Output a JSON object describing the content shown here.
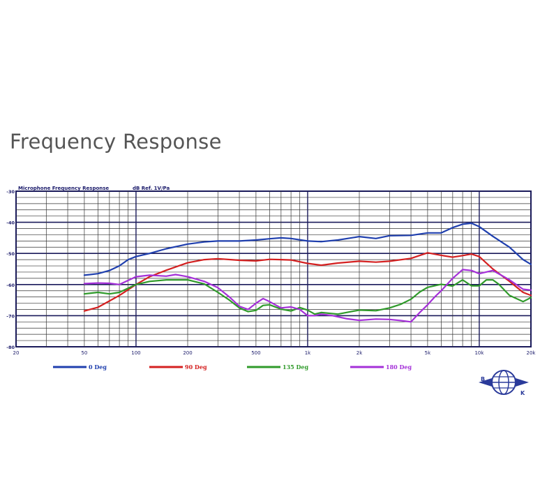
{
  "heading": "Frequency Response",
  "chart_data": {
    "type": "line",
    "title": "Microphone Frequency Response",
    "ylabel": "dB Ref. 1V/Pa",
    "x_scale": "log",
    "xlim": [
      20,
      20000
    ],
    "ylim": [
      -80,
      -30
    ],
    "y_ticks": [
      -30,
      -40,
      -50,
      -60,
      -70,
      -80
    ],
    "y_tick_labels": [
      "-30",
      "-40",
      "-50",
      "-60",
      "-70",
      "-80"
    ],
    "x_ticks": [
      20,
      50,
      100,
      200,
      500,
      1000,
      2000,
      5000,
      10000,
      20000
    ],
    "x_tick_labels": [
      "20",
      "50",
      "100",
      "200",
      "500",
      "1k",
      "2k",
      "5k",
      "10k",
      "20k"
    ],
    "grid": true,
    "legend_position": "bottom",
    "series": [
      {
        "name": "0 Deg",
        "color": "#1f3fae",
        "x": [
          50,
          60,
          70,
          80,
          90,
          100,
          120,
          150,
          200,
          250,
          300,
          400,
          500,
          600,
          700,
          800,
          1000,
          1200,
          1500,
          2000,
          2500,
          3000,
          4000,
          5000,
          6000,
          7000,
          8000,
          9000,
          10000,
          12000,
          15000,
          18000,
          20000
        ],
        "y": [
          -57,
          -56.5,
          -55.5,
          -54,
          -52,
          -51,
          -50,
          -48.5,
          -47,
          -46.3,
          -46,
          -46,
          -45.7,
          -45.3,
          -45,
          -45.2,
          -46,
          -46.2,
          -45.7,
          -44.6,
          -45.2,
          -44.3,
          -44.2,
          -43.4,
          -43.4,
          -41.7,
          -40.6,
          -40.3,
          -41.4,
          -44.5,
          -48,
          -52,
          -53.5
        ]
      },
      {
        "name": "90 Deg",
        "color": "#d42020",
        "x": [
          50,
          60,
          70,
          80,
          100,
          120,
          150,
          200,
          250,
          300,
          400,
          500,
          600,
          700,
          800,
          1000,
          1200,
          1500,
          2000,
          2500,
          3000,
          4000,
          5000,
          6000,
          7000,
          8000,
          9000,
          10000,
          12000,
          15000,
          18000,
          20000
        ],
        "y": [
          -68.5,
          -67.3,
          -65.3,
          -63.5,
          -60,
          -57.5,
          -55.4,
          -53,
          -52,
          -51.7,
          -52.2,
          -52.4,
          -51.9,
          -52,
          -52.1,
          -53.2,
          -53.8,
          -53.1,
          -52.5,
          -52.8,
          -52.5,
          -51.6,
          -49.8,
          -50.6,
          -51.2,
          -50.7,
          -50.2,
          -51,
          -55,
          -59,
          -62.5,
          -63.5
        ]
      },
      {
        "name": "135 Deg",
        "color": "#2f9a2a",
        "x": [
          50,
          60,
          70,
          80,
          100,
          120,
          150,
          200,
          250,
          300,
          350,
          400,
          450,
          500,
          550,
          600,
          700,
          800,
          900,
          1000,
          1100,
          1200,
          1500,
          2000,
          2500,
          3000,
          3500,
          4000,
          4500,
          5000,
          6000,
          7000,
          8000,
          9000,
          10000,
          11000,
          12000,
          13000,
          15000,
          18000,
          20000
        ],
        "y": [
          -63,
          -62.5,
          -63,
          -62.5,
          -60,
          -59,
          -58.5,
          -58.5,
          -59.8,
          -62.5,
          -65,
          -67.5,
          -68.7,
          -68.3,
          -66.7,
          -66.5,
          -67.9,
          -68.5,
          -67.4,
          -68.2,
          -69.5,
          -69,
          -69.5,
          -68.2,
          -68.4,
          -67.5,
          -66.3,
          -64.7,
          -62.4,
          -60.9,
          -59.9,
          -60.5,
          -58.5,
          -60.4,
          -60.4,
          -58.5,
          -58.5,
          -59.9,
          -63.5,
          -65.5,
          -64.2
        ]
      },
      {
        "name": "180 Deg",
        "color": "#a430d8",
        "x": [
          50,
          60,
          70,
          80,
          100,
          120,
          150,
          170,
          200,
          250,
          300,
          350,
          400,
          450,
          500,
          550,
          600,
          700,
          800,
          900,
          1000,
          1100,
          1200,
          1400,
          1700,
          2000,
          2500,
          3000,
          3500,
          4000,
          4500,
          5000,
          5500,
          6000,
          7000,
          8000,
          9000,
          10000,
          12000,
          15000,
          18000,
          20000
        ],
        "y": [
          -59.7,
          -59.5,
          -59.6,
          -60,
          -57.5,
          -57,
          -57.3,
          -56.8,
          -57.5,
          -59,
          -61,
          -64,
          -67,
          -68,
          -66,
          -64.5,
          -65.5,
          -67.5,
          -67.2,
          -68,
          -70,
          -70,
          -69.5,
          -70,
          -71,
          -71.5,
          -71.1,
          -71.2,
          -71.6,
          -72,
          -69,
          -66.5,
          -64,
          -62,
          -58,
          -55.2,
          -55.5,
          -56.5,
          -55.5,
          -58.5,
          -61.5,
          -61.8
        ]
      }
    ]
  },
  "logo": {
    "description_letters": [
      "B",
      "K"
    ]
  }
}
